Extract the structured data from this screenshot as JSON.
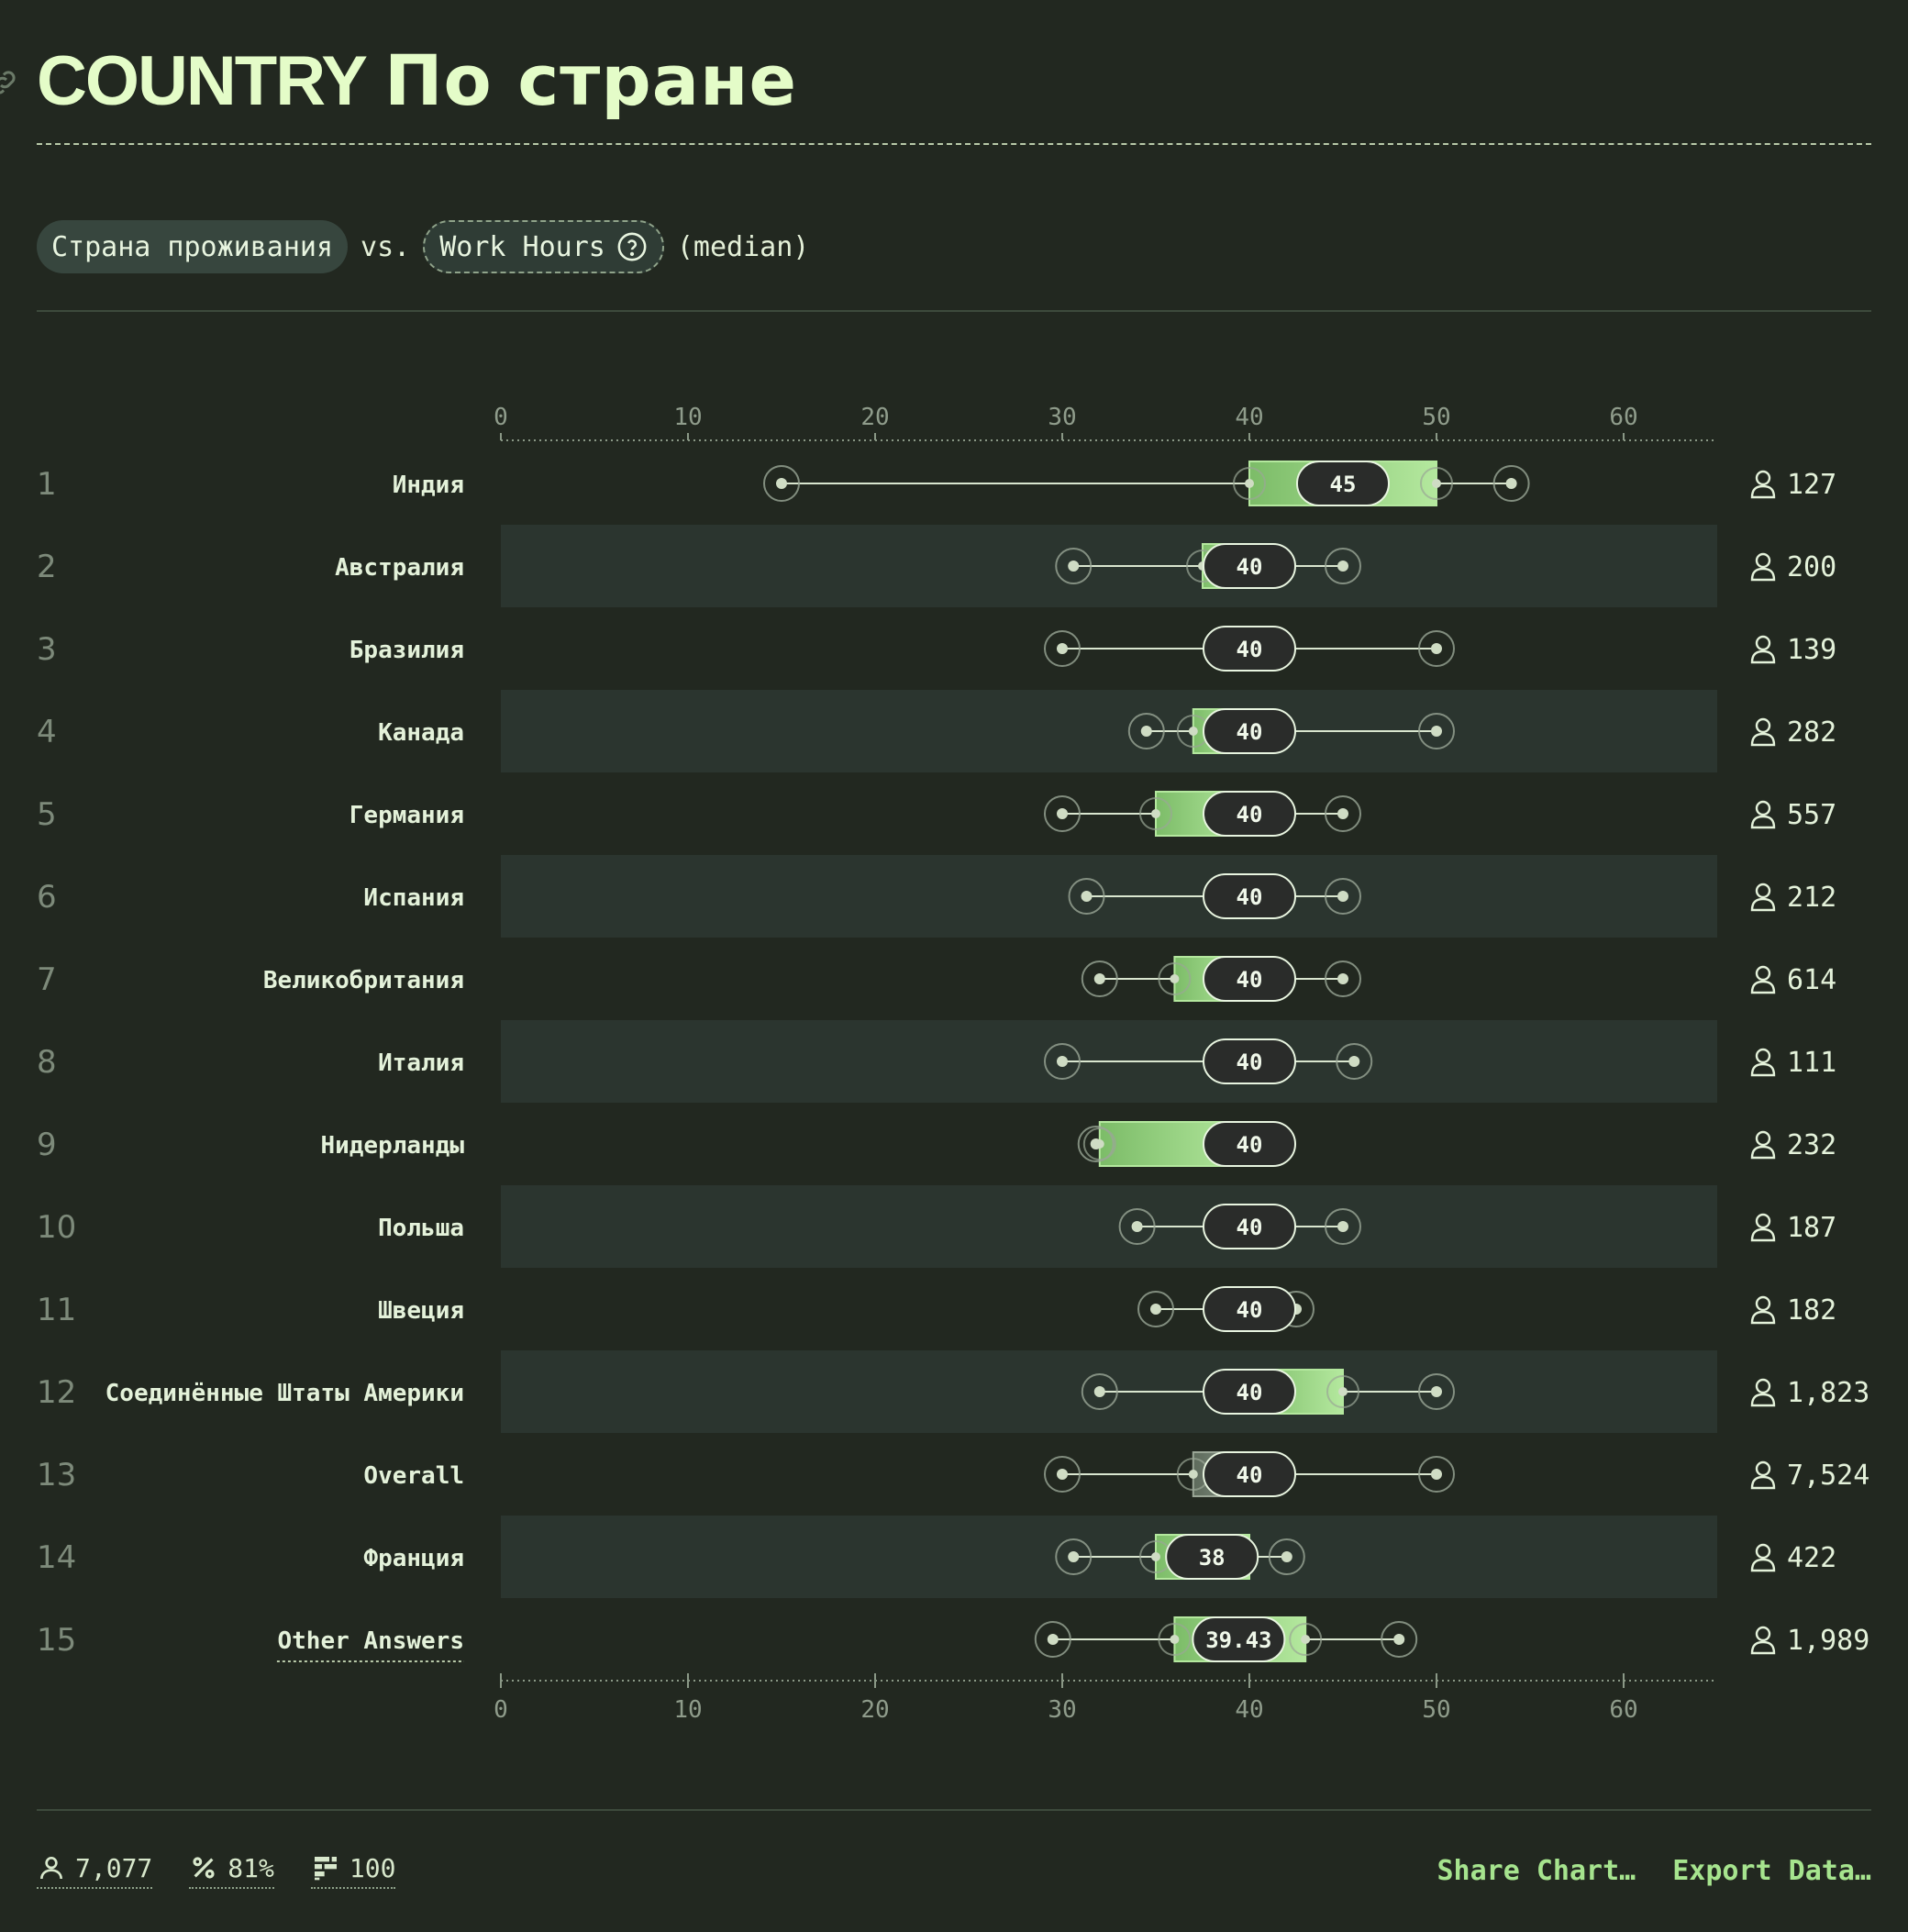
{
  "header": {
    "tag": "COUNTRY",
    "title": "По стране"
  },
  "subtitle": {
    "dimension": "Страна проживания",
    "vs": "vs.",
    "metric": "Work Hours",
    "aggregation": "(median)"
  },
  "chart_data": {
    "type": "boxplot",
    "x_axis": {
      "range": [
        0,
        65
      ],
      "ticks": [
        0,
        10,
        20,
        30,
        40,
        50,
        60
      ],
      "position": "top-and-bottom"
    },
    "rows": [
      {
        "rank": "1",
        "label": "Индия",
        "median": 45,
        "median_label": "45",
        "min": 15,
        "p10": 40,
        "q1": 40,
        "q3": 50,
        "p90": 50,
        "max": 54,
        "count": "127"
      },
      {
        "rank": "2",
        "label": "Австралия",
        "median": 40,
        "median_label": "40",
        "min": 30.6,
        "p10": 37.5,
        "q1": 37.5,
        "q3": 40,
        "p90": 45,
        "max": 45,
        "count": "200"
      },
      {
        "rank": "3",
        "label": "Бразилия",
        "median": 40,
        "median_label": "40",
        "min": 30,
        "p10": 40,
        "q1": 40,
        "q3": 40,
        "p90": 50,
        "max": 50,
        "count": "139"
      },
      {
        "rank": "4",
        "label": "Канада",
        "median": 40,
        "median_label": "40",
        "min": 34.5,
        "p10": 37,
        "q1": 37,
        "q3": 40,
        "p90": 50,
        "max": 50,
        "count": "282"
      },
      {
        "rank": "5",
        "label": "Германия",
        "median": 40,
        "median_label": "40",
        "min": 30,
        "p10": 35,
        "q1": 35,
        "q3": 40,
        "p90": 45,
        "max": 45,
        "count": "557"
      },
      {
        "rank": "6",
        "label": "Испания",
        "median": 40,
        "median_label": "40",
        "min": 31.3,
        "p10": 40,
        "q1": 40,
        "q3": 40,
        "p90": 45,
        "max": 45,
        "count": "212"
      },
      {
        "rank": "7",
        "label": "Великобритания",
        "median": 40,
        "median_label": "40",
        "min": 32,
        "p10": 36,
        "q1": 36,
        "q3": 40,
        "p90": 45,
        "max": 45,
        "count": "614"
      },
      {
        "rank": "8",
        "label": "Италия",
        "median": 40,
        "median_label": "40",
        "min": 30,
        "p10": 40,
        "q1": 40,
        "q3": 40,
        "p90": 45.6,
        "max": 45.6,
        "count": "111"
      },
      {
        "rank": "9",
        "label": "Нидерланды",
        "median": 40,
        "median_label": "40",
        "min": 31.8,
        "p10": 32,
        "q1": 32,
        "q3": 40,
        "p90": 40,
        "max": 40,
        "count": "232"
      },
      {
        "rank": "10",
        "label": "Польша",
        "median": 40,
        "median_label": "40",
        "min": 34,
        "p10": 40,
        "q1": 40,
        "q3": 40,
        "p90": 45,
        "max": 45,
        "count": "187"
      },
      {
        "rank": "11",
        "label": "Швеция",
        "median": 40,
        "median_label": "40",
        "min": 35,
        "p10": 40,
        "q1": 40,
        "q3": 40,
        "p90": 42.5,
        "max": 42.5,
        "count": "182"
      },
      {
        "rank": "12",
        "label": "Соединённые Штаты Америки",
        "median": 40,
        "median_label": "40",
        "min": 32,
        "p10": 40,
        "q1": 40,
        "q3": 45,
        "p90": 45,
        "max": 50,
        "count": "1,823"
      },
      {
        "rank": "13",
        "label": "Overall",
        "median": 40,
        "median_label": "40",
        "min": 30,
        "p10": 37,
        "q1": 37,
        "q3": 40,
        "p90": 50,
        "max": 50,
        "count": "7,524",
        "neutral": true
      },
      {
        "rank": "14",
        "label": "Франция",
        "median": 38,
        "median_label": "38",
        "min": 30.6,
        "p10": 35,
        "q1": 35,
        "q3": 40,
        "p90": 42,
        "max": 42,
        "count": "422"
      },
      {
        "rank": "15",
        "label": "Other Answers",
        "median": 39.43,
        "median_label": "39.43",
        "min": 29.5,
        "p10": 36,
        "q1": 36,
        "q3": 43,
        "p90": 43,
        "max": 48,
        "count": "1,989",
        "dotted_label": true
      }
    ]
  },
  "colors": {
    "background": "#222820",
    "stripe": "#2b352f",
    "box_light": "#b4e89e",
    "box_dark": "#7cbc68",
    "accent": "#a6e48e"
  },
  "footer": {
    "respondents": "7,077",
    "percent": "81%",
    "questions": "100",
    "share": "Share Chart…",
    "export": "Export Data…"
  }
}
